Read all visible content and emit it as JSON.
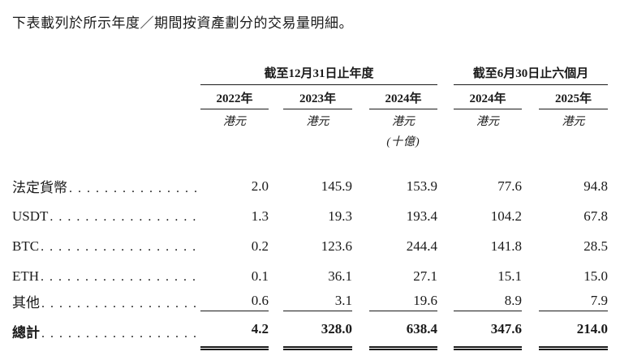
{
  "page": {
    "title": "下表載列於所示年度／期間按資產劃分的交易量明細。"
  },
  "table": {
    "col_groups": [
      {
        "label": "截至12月31日止年度",
        "span": 3
      },
      {
        "label": "截至6月30日止六個月",
        "span": 2
      }
    ],
    "year_headers": [
      "2022年",
      "2023年",
      "2024年",
      "2024年",
      "2025年"
    ],
    "unit_labels": [
      "港元",
      "港元",
      "港元",
      "港元",
      "港元"
    ],
    "unit_note": "(十億)",
    "rows": [
      {
        "label": "法定貨幣",
        "values": [
          "2.0",
          "145.9",
          "153.9",
          "77.6",
          "94.8"
        ]
      },
      {
        "label": "USDT",
        "values": [
          "1.3",
          "19.3",
          "193.4",
          "104.2",
          "67.8"
        ]
      },
      {
        "label": "BTC",
        "values": [
          "0.2",
          "123.6",
          "244.4",
          "141.8",
          "28.5"
        ]
      },
      {
        "label": "ETH",
        "values": [
          "0.1",
          "36.1",
          "27.1",
          "15.1",
          "15.0"
        ]
      },
      {
        "label": "其他",
        "values": [
          "0.6",
          "3.1",
          "19.6",
          "8.9",
          "7.9"
        ]
      }
    ],
    "total_row": {
      "label": "總計",
      "values": [
        "4.2",
        "328.0",
        "638.4",
        "347.6",
        "214.0"
      ]
    }
  }
}
